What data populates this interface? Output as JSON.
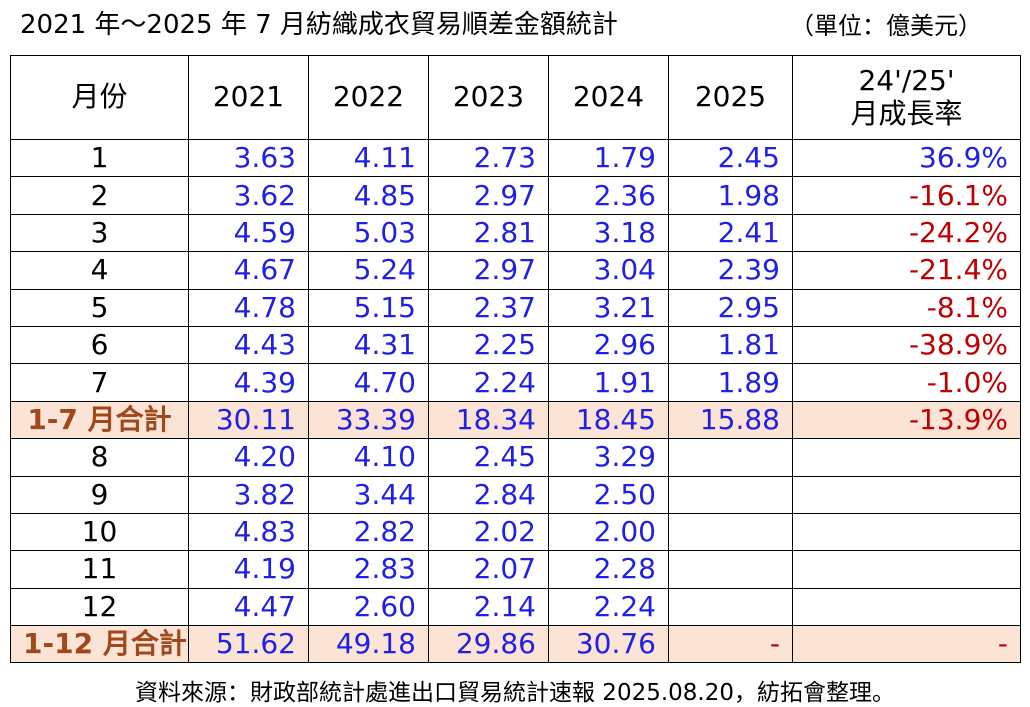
{
  "header": {
    "title": "2021 年～2025 年 7 月紡織成衣貿易順差金額統計",
    "unit": "（單位：億美元）"
  },
  "table": {
    "columns": [
      "月份",
      "2021",
      "2022",
      "2023",
      "2024",
      "2025"
    ],
    "growth_header": [
      "24'/25'",
      "月成長率"
    ],
    "rows": [
      [
        "1",
        "3.63",
        "4.11",
        "2.73",
        "1.79",
        "2.45",
        "36.9%"
      ],
      [
        "2",
        "3.62",
        "4.85",
        "2.97",
        "2.36",
        "1.98",
        "-16.1%"
      ],
      [
        "3",
        "4.59",
        "5.03",
        "2.81",
        "3.18",
        "2.41",
        "-24.2%"
      ],
      [
        "4",
        "4.67",
        "5.24",
        "2.97",
        "3.04",
        "2.39",
        "-21.4%"
      ],
      [
        "5",
        "4.78",
        "5.15",
        "2.37",
        "3.21",
        "2.95",
        "-8.1%"
      ],
      [
        "6",
        "4.43",
        "4.31",
        "2.25",
        "2.96",
        "1.81",
        "-38.9%"
      ],
      [
        "7",
        "4.39",
        "4.70",
        "2.24",
        "1.91",
        "1.89",
        "-1.0%"
      ],
      [
        "1-7 月合計",
        "30.11",
        "33.39",
        "18.34",
        "18.45",
        "15.88",
        "-13.9%"
      ],
      [
        "8",
        "4.20",
        "4.10",
        "2.45",
        "3.29"
      ],
      [
        "9",
        "3.82",
        "3.44",
        "2.84",
        "2.50"
      ],
      [
        "10",
        "4.83",
        "2.82",
        "2.02",
        "2.00"
      ],
      [
        "11",
        "4.19",
        "2.83",
        "2.07",
        "2.28"
      ],
      [
        "12",
        "4.47",
        "2.60",
        "2.14",
        "2.24"
      ],
      [
        "1-12 月合計",
        "51.62",
        "49.18",
        "29.86",
        "30.76",
        "-",
        "-"
      ]
    ]
  },
  "footer": {
    "source": "資料來源：財政部統計處進出口貿易統計速報 2025.08.20，紡拓會整理。"
  }
}
